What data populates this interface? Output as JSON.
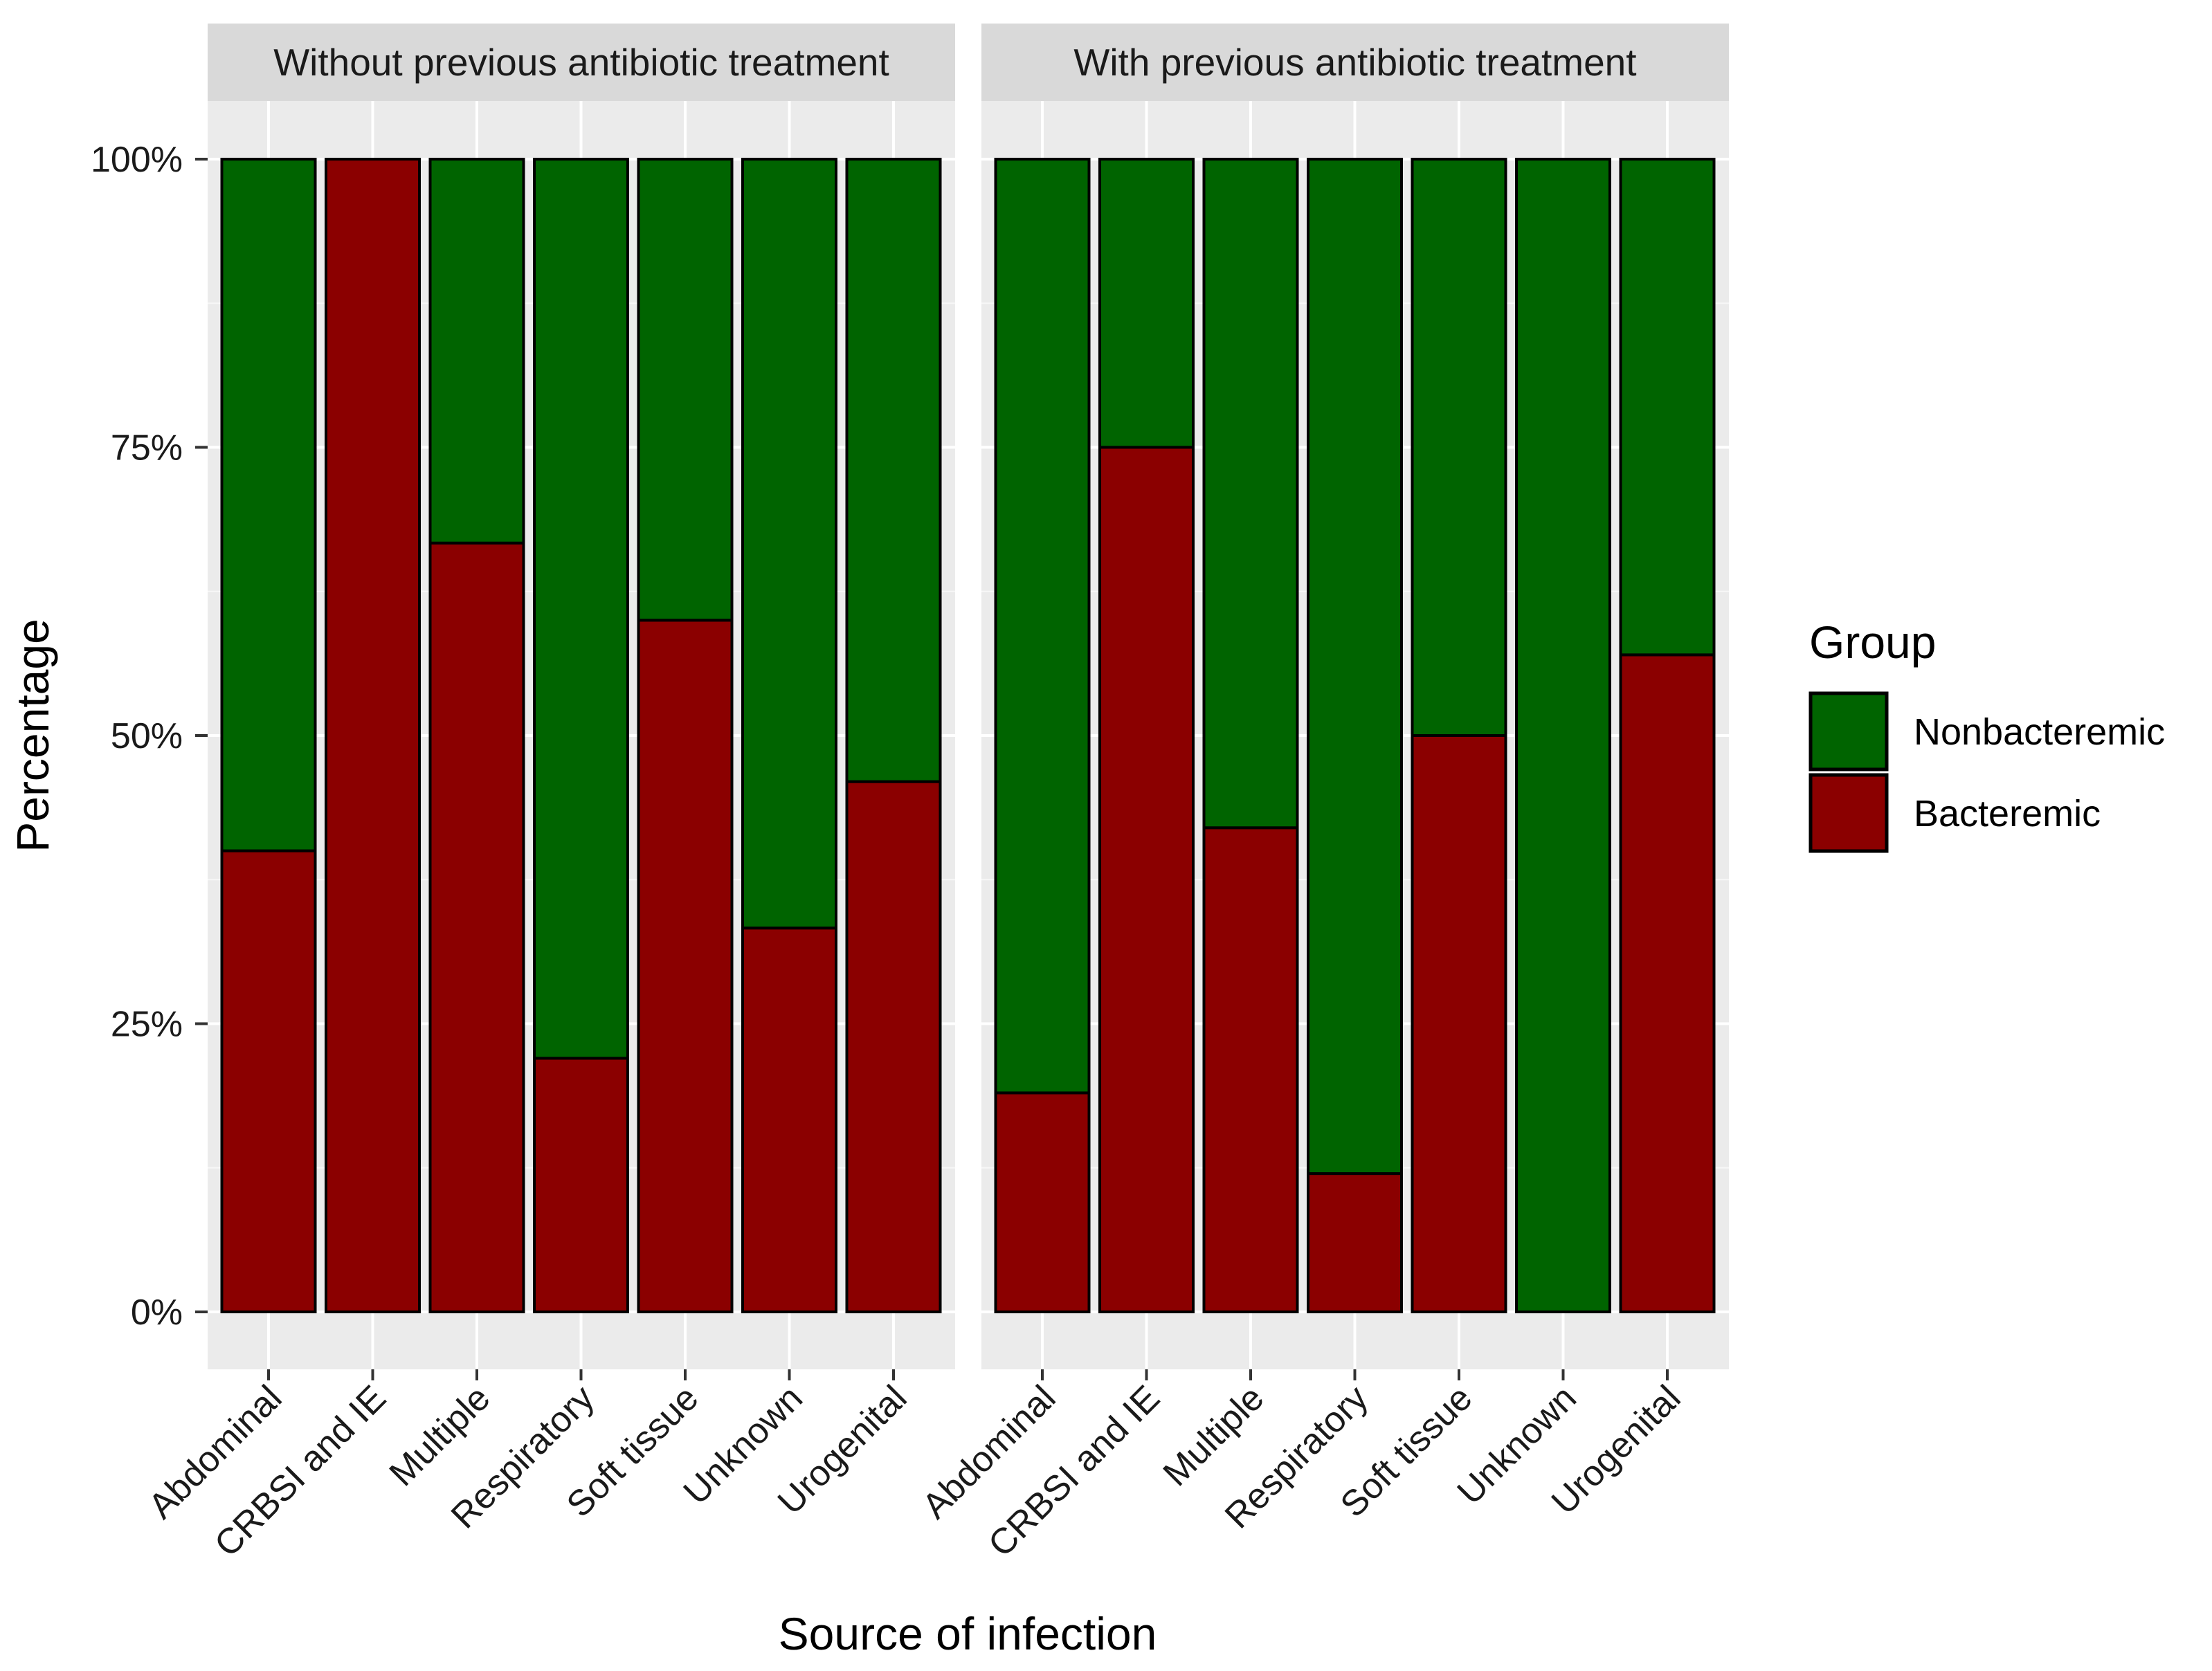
{
  "chart_data": {
    "type": "bar",
    "stacked": true,
    "xlabel": "Source of infection",
    "ylabel": "Percentage",
    "ylim": [
      0,
      1
    ],
    "y_ticks": [
      {
        "value": 0,
        "label": "0%"
      },
      {
        "value": 0.25,
        "label": "25%"
      },
      {
        "value": 0.5,
        "label": "50%"
      },
      {
        "value": 0.75,
        "label": "75%"
      },
      {
        "value": 1,
        "label": "100%"
      }
    ],
    "grid": true,
    "legend": {
      "title": "Group",
      "position": "right",
      "entries": [
        {
          "name": "Nonbacteremic",
          "color": "#006400"
        },
        {
          "name": "Bacteremic",
          "color": "#8B0000"
        }
      ]
    },
    "categories": [
      "Abdominal",
      "CRBSI and IE",
      "Multiple",
      "Respiratory",
      "Soft tissue",
      "Unknown",
      "Urogenital"
    ],
    "panels": [
      {
        "title": "Without previous antibiotic treatment",
        "series": [
          {
            "name": "Bacteremic",
            "values": [
              0.4,
              1.0,
              0.667,
              0.22,
              0.6,
              0.333,
              0.46
            ]
          },
          {
            "name": "Nonbacteremic",
            "values": [
              0.6,
              0.0,
              0.333,
              0.78,
              0.4,
              0.667,
              0.54
            ]
          }
        ]
      },
      {
        "title": "With previous antibiotic treatment",
        "series": [
          {
            "name": "Bacteremic",
            "values": [
              0.19,
              0.75,
              0.42,
              0.12,
              0.5,
              0.0,
              0.57
            ]
          },
          {
            "name": "Nonbacteremic",
            "values": [
              0.81,
              0.25,
              0.58,
              0.88,
              0.5,
              1.0,
              0.43
            ]
          }
        ]
      }
    ]
  }
}
